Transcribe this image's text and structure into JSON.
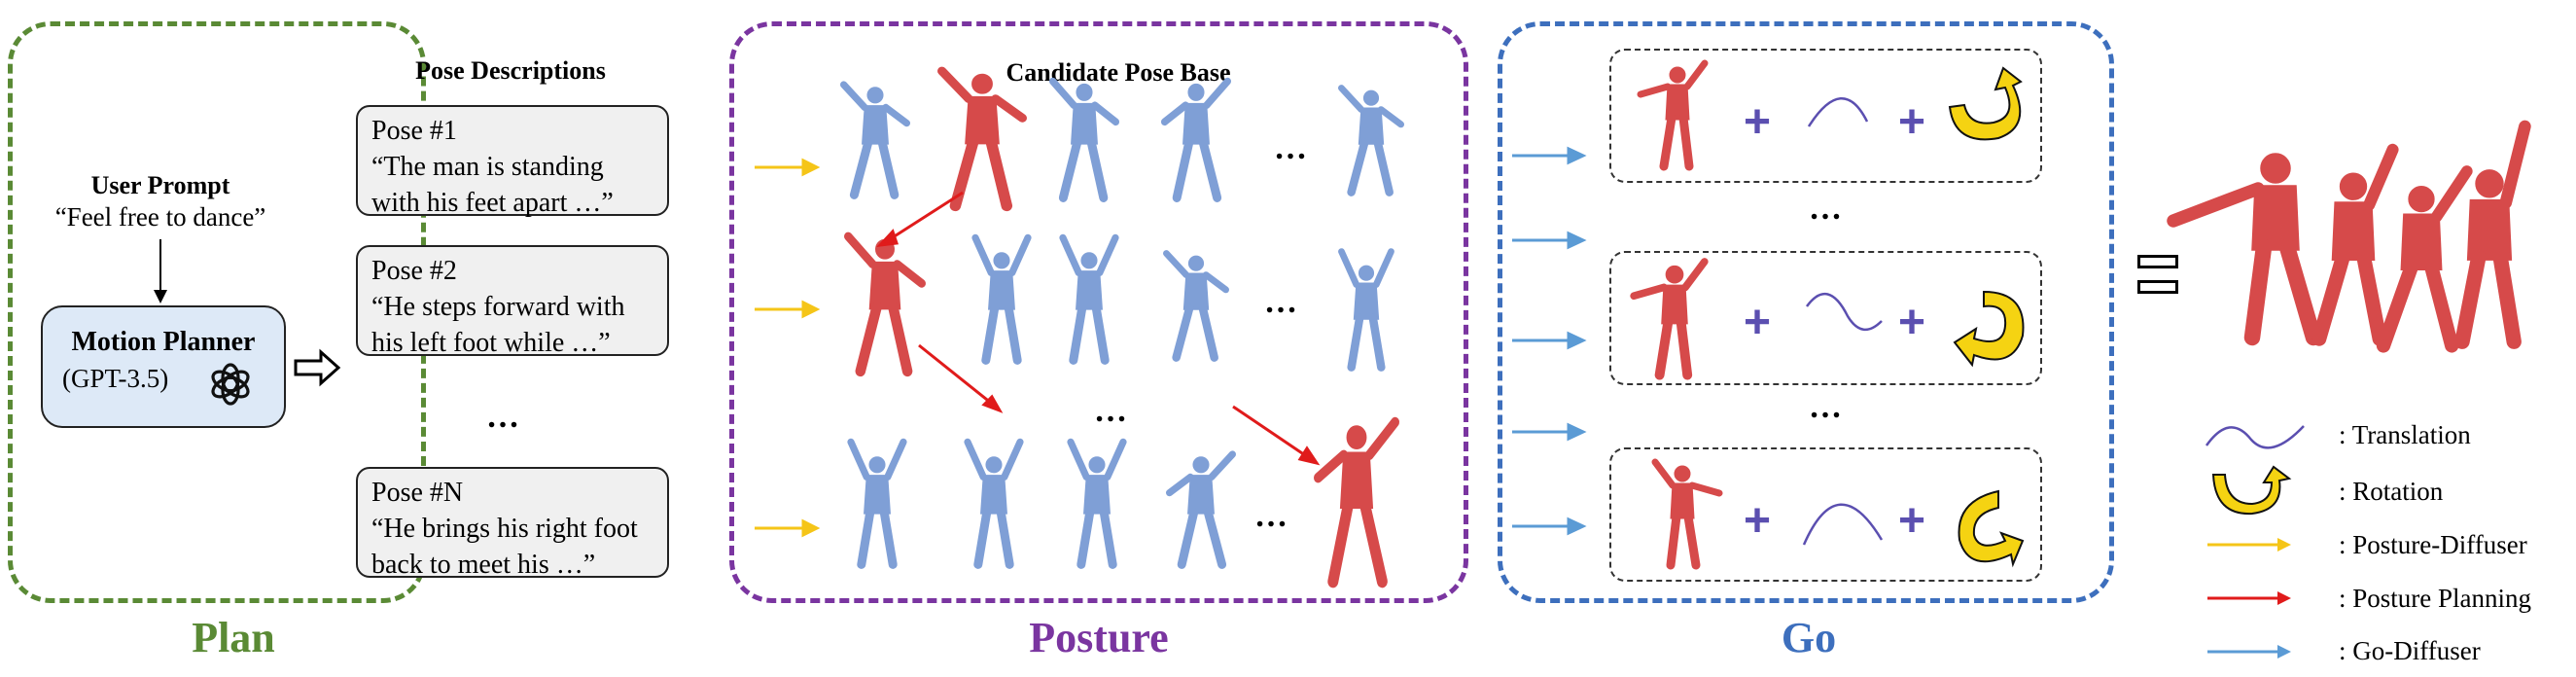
{
  "plan": {
    "title": "Plan",
    "user_prompt": {
      "heading": "User Prompt",
      "text": "“Feel free to dance”"
    },
    "planner": {
      "title": "Motion Planner",
      "model": "(GPT-3.5)",
      "logo_icon": "openai-logo-icon"
    },
    "descriptions_heading": "Pose Descriptions",
    "poses": [
      {
        "label": "Pose #1",
        "line1": "“The man is standing",
        "line2": "with his feet apart …”"
      },
      {
        "label": "Pose #2",
        "line1": "“He steps forward with",
        "line2": "his left foot while …”"
      },
      {
        "label": "Pose #N",
        "line1": "“He brings his right foot",
        "line2": "back to meet his  …”"
      }
    ],
    "ellipsis": "…"
  },
  "posture": {
    "title": "Posture",
    "heading": "Candidate Pose Base",
    "ellipsis": "…"
  },
  "go": {
    "title": "Go",
    "plus": "+",
    "ellipsis": "…"
  },
  "result": {
    "equals": "="
  },
  "legend": [
    {
      "icon": "wave-curve-icon",
      "label": ": Translation"
    },
    {
      "icon": "rotation-arrow-icon",
      "label": ": Rotation"
    },
    {
      "icon": "yellow-arrow-icon",
      "label": ": Posture-Diffuser"
    },
    {
      "icon": "red-arrow-icon",
      "label": ": Posture Planning"
    },
    {
      "icon": "blue-arrow-icon",
      "label": ": Go-Diffuser"
    }
  ],
  "colors": {
    "plan": "#5a8a35",
    "posture": "#7a35a0",
    "go": "#3d6fbd",
    "red_figure": "#d64a4a",
    "blue_figure": "#7f9fd6",
    "yellow": "#f5c518",
    "red_arrow": "#e01b1b",
    "blue_arrow": "#5b9bd5",
    "planner_fill": "#dde9f7"
  }
}
